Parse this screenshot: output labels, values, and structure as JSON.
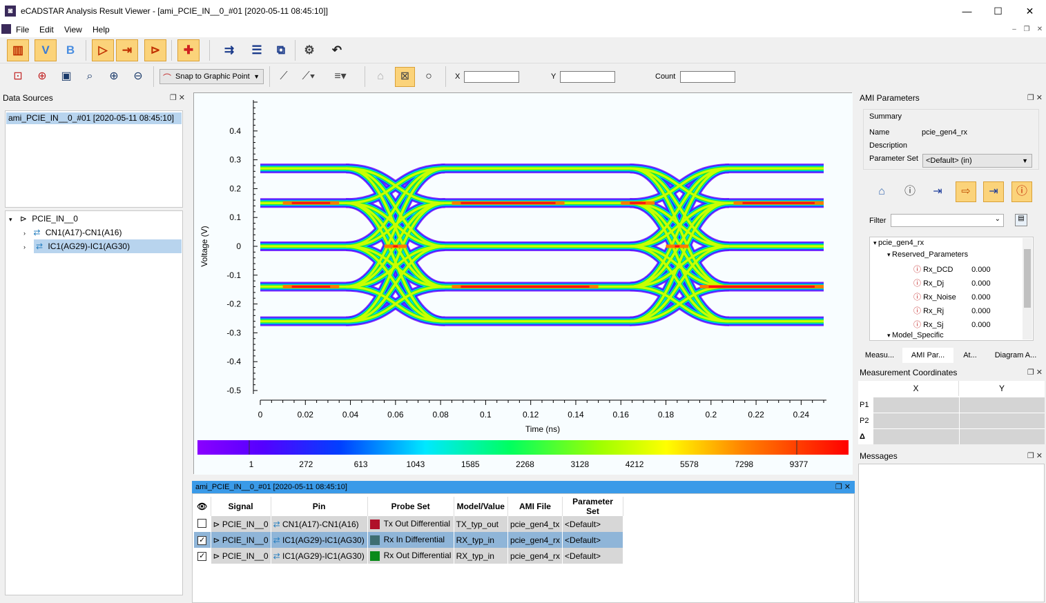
{
  "window": {
    "title": "eCADSTAR Analysis Result Viewer - [ami_PCIE_IN__0_#01  [2020-05-11 08:45:10]]",
    "minimize": "—",
    "maximize": "☐",
    "close": "✕"
  },
  "menu": [
    "File",
    "Edit",
    "View",
    "Help"
  ],
  "toolbar2": {
    "snap_label": "Snap to Graphic Point",
    "x_label": "X",
    "y_label": "Y",
    "count_label": "Count",
    "x_value": "",
    "y_value": "",
    "count_value": ""
  },
  "data_sources": {
    "title": "Data Sources",
    "item": "ami_PCIE_IN__0_#01  [2020-05-11 08:45:10]",
    "tree": {
      "root": "PCIE_IN__0",
      "children": [
        "CN1(A17)-CN1(A16)",
        "IC1(AG29)-IC1(AG30)"
      ]
    }
  },
  "chart_data": {
    "type": "heatmap",
    "title": "",
    "xlabel": "Time  (ns)",
    "ylabel": "Voltage  (V)",
    "xlim": [
      0,
      0.25
    ],
    "ylim": [
      -0.5,
      0.5
    ],
    "x_ticks": [
      "0",
      "0.02",
      "0.04",
      "0.06",
      "0.08",
      "0.1",
      "0.12",
      "0.14",
      "0.16",
      "0.18",
      "0.2",
      "0.22",
      "0.24"
    ],
    "y_ticks": [
      "0.4",
      "0.3",
      "0.2",
      "0.1",
      "0",
      "-0.1",
      "-0.2",
      "-0.3",
      "-0.4",
      "-0.5"
    ],
    "colorbar_labels": [
      "1",
      "272",
      "613",
      "1043",
      "1585",
      "2268",
      "3128",
      "4212",
      "5578",
      "7298",
      "9377"
    ],
    "levels_v": [
      0.27,
      0.15,
      0.0,
      -0.14,
      -0.26
    ],
    "crossing_times_ns": [
      0.06,
      0.186
    ],
    "data_extent_x": [
      0.0,
      0.25
    ]
  },
  "signal_table": {
    "header": "ami_PCIE_IN__0_#01  [2020-05-11 08:45:10]",
    "columns": [
      "Signal",
      "Pin",
      "Probe Set",
      "Model/Value",
      "AMI File",
      "Parameter Set"
    ],
    "rows": [
      {
        "checked": "",
        "signal": "PCIE_IN__0",
        "pin": "CN1(A17)-CN1(A16)",
        "probe": "Tx Out Differential",
        "probe_color": "#b0102a",
        "model": "TX_typ_out",
        "ami": "pcie_gen4_tx",
        "param": "<Default>"
      },
      {
        "checked": "✓",
        "signal": "PCIE_IN__0",
        "pin": "IC1(AG29)-IC1(AG30)",
        "probe": "Rx In Differential",
        "probe_color": "#3e6e72",
        "model": "RX_typ_in",
        "ami": "pcie_gen4_rx",
        "param": "<Default>"
      },
      {
        "checked": "✓",
        "signal": "PCIE_IN__0",
        "pin": "IC1(AG29)-IC1(AG30)",
        "probe": "Rx Out Differential",
        "probe_color": "#0a8a1a",
        "model": "RX_typ_in",
        "ami": "pcie_gen4_rx",
        "param": "<Default>"
      }
    ]
  },
  "ami_parameters": {
    "title": "AMI Parameters",
    "summary_label": "Summary",
    "name_label": "Name",
    "name_value": "pcie_gen4_rx",
    "description_label": "Description",
    "paramset_label": "Parameter Set",
    "paramset_value": "<Default> (in)",
    "filter_label": "Filter",
    "tree_root": "pcie_gen4_rx",
    "reserved_label": "Reserved_Parameters",
    "params": [
      {
        "name": "Rx_DCD",
        "value": "0.000"
      },
      {
        "name": "Rx_Dj",
        "value": "0.000"
      },
      {
        "name": "Rx_Noise",
        "value": "0.000"
      },
      {
        "name": "Rx_Rj",
        "value": "0.000"
      },
      {
        "name": "Rx_Sj",
        "value": "0.000"
      }
    ],
    "model_specific_label": "Model_Specific"
  },
  "tabs": [
    "Measu...",
    "AMI Par...",
    "At...",
    "Diagram A..."
  ],
  "measurement": {
    "title": "Measurement Coordinates",
    "col_x": "X",
    "col_y": "Y",
    "rows": [
      "P1",
      "P2",
      "Δ"
    ]
  },
  "messages": {
    "title": "Messages"
  }
}
